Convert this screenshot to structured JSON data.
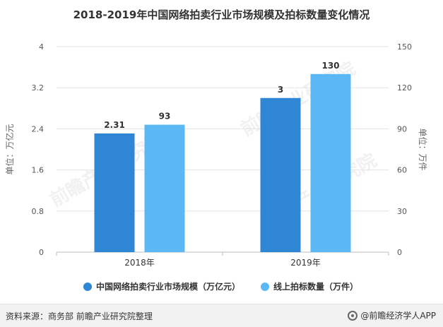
{
  "title": "2018-2019年中国网络拍卖行业市场规模及拍标数量变化情况",
  "source": "资料来源：商务部 前瞻产业研究院整理",
  "brand": "@前瞻经济学人APP",
  "watermark": "前瞻产业研究院",
  "chart_data": {
    "type": "bar",
    "categories": [
      "2018年",
      "2019年"
    ],
    "series": [
      {
        "name": "中国网络拍卖行业市场规模（万亿元）",
        "axis": "left",
        "values": [
          2.31,
          3
        ],
        "labels": [
          "2.31",
          "3"
        ],
        "color": "#2e86d4"
      },
      {
        "name": "线上拍标数量（万件）",
        "axis": "right",
        "values": [
          93,
          130
        ],
        "labels": [
          "93",
          "130"
        ],
        "color": "#5bb8f5"
      }
    ],
    "ylabel_left": "单位：万亿元",
    "ylabel_right": "单位：万件",
    "ylim_left": [
      0,
      4
    ],
    "ylim_right": [
      0,
      150
    ],
    "yticks_left": [
      "0",
      "0.8",
      "1.6",
      "2.4",
      "3.2",
      "4"
    ],
    "yticks_right": [
      "0",
      "30",
      "60",
      "90",
      "120",
      "150"
    ],
    "grid": true,
    "legend_position": "bottom"
  }
}
